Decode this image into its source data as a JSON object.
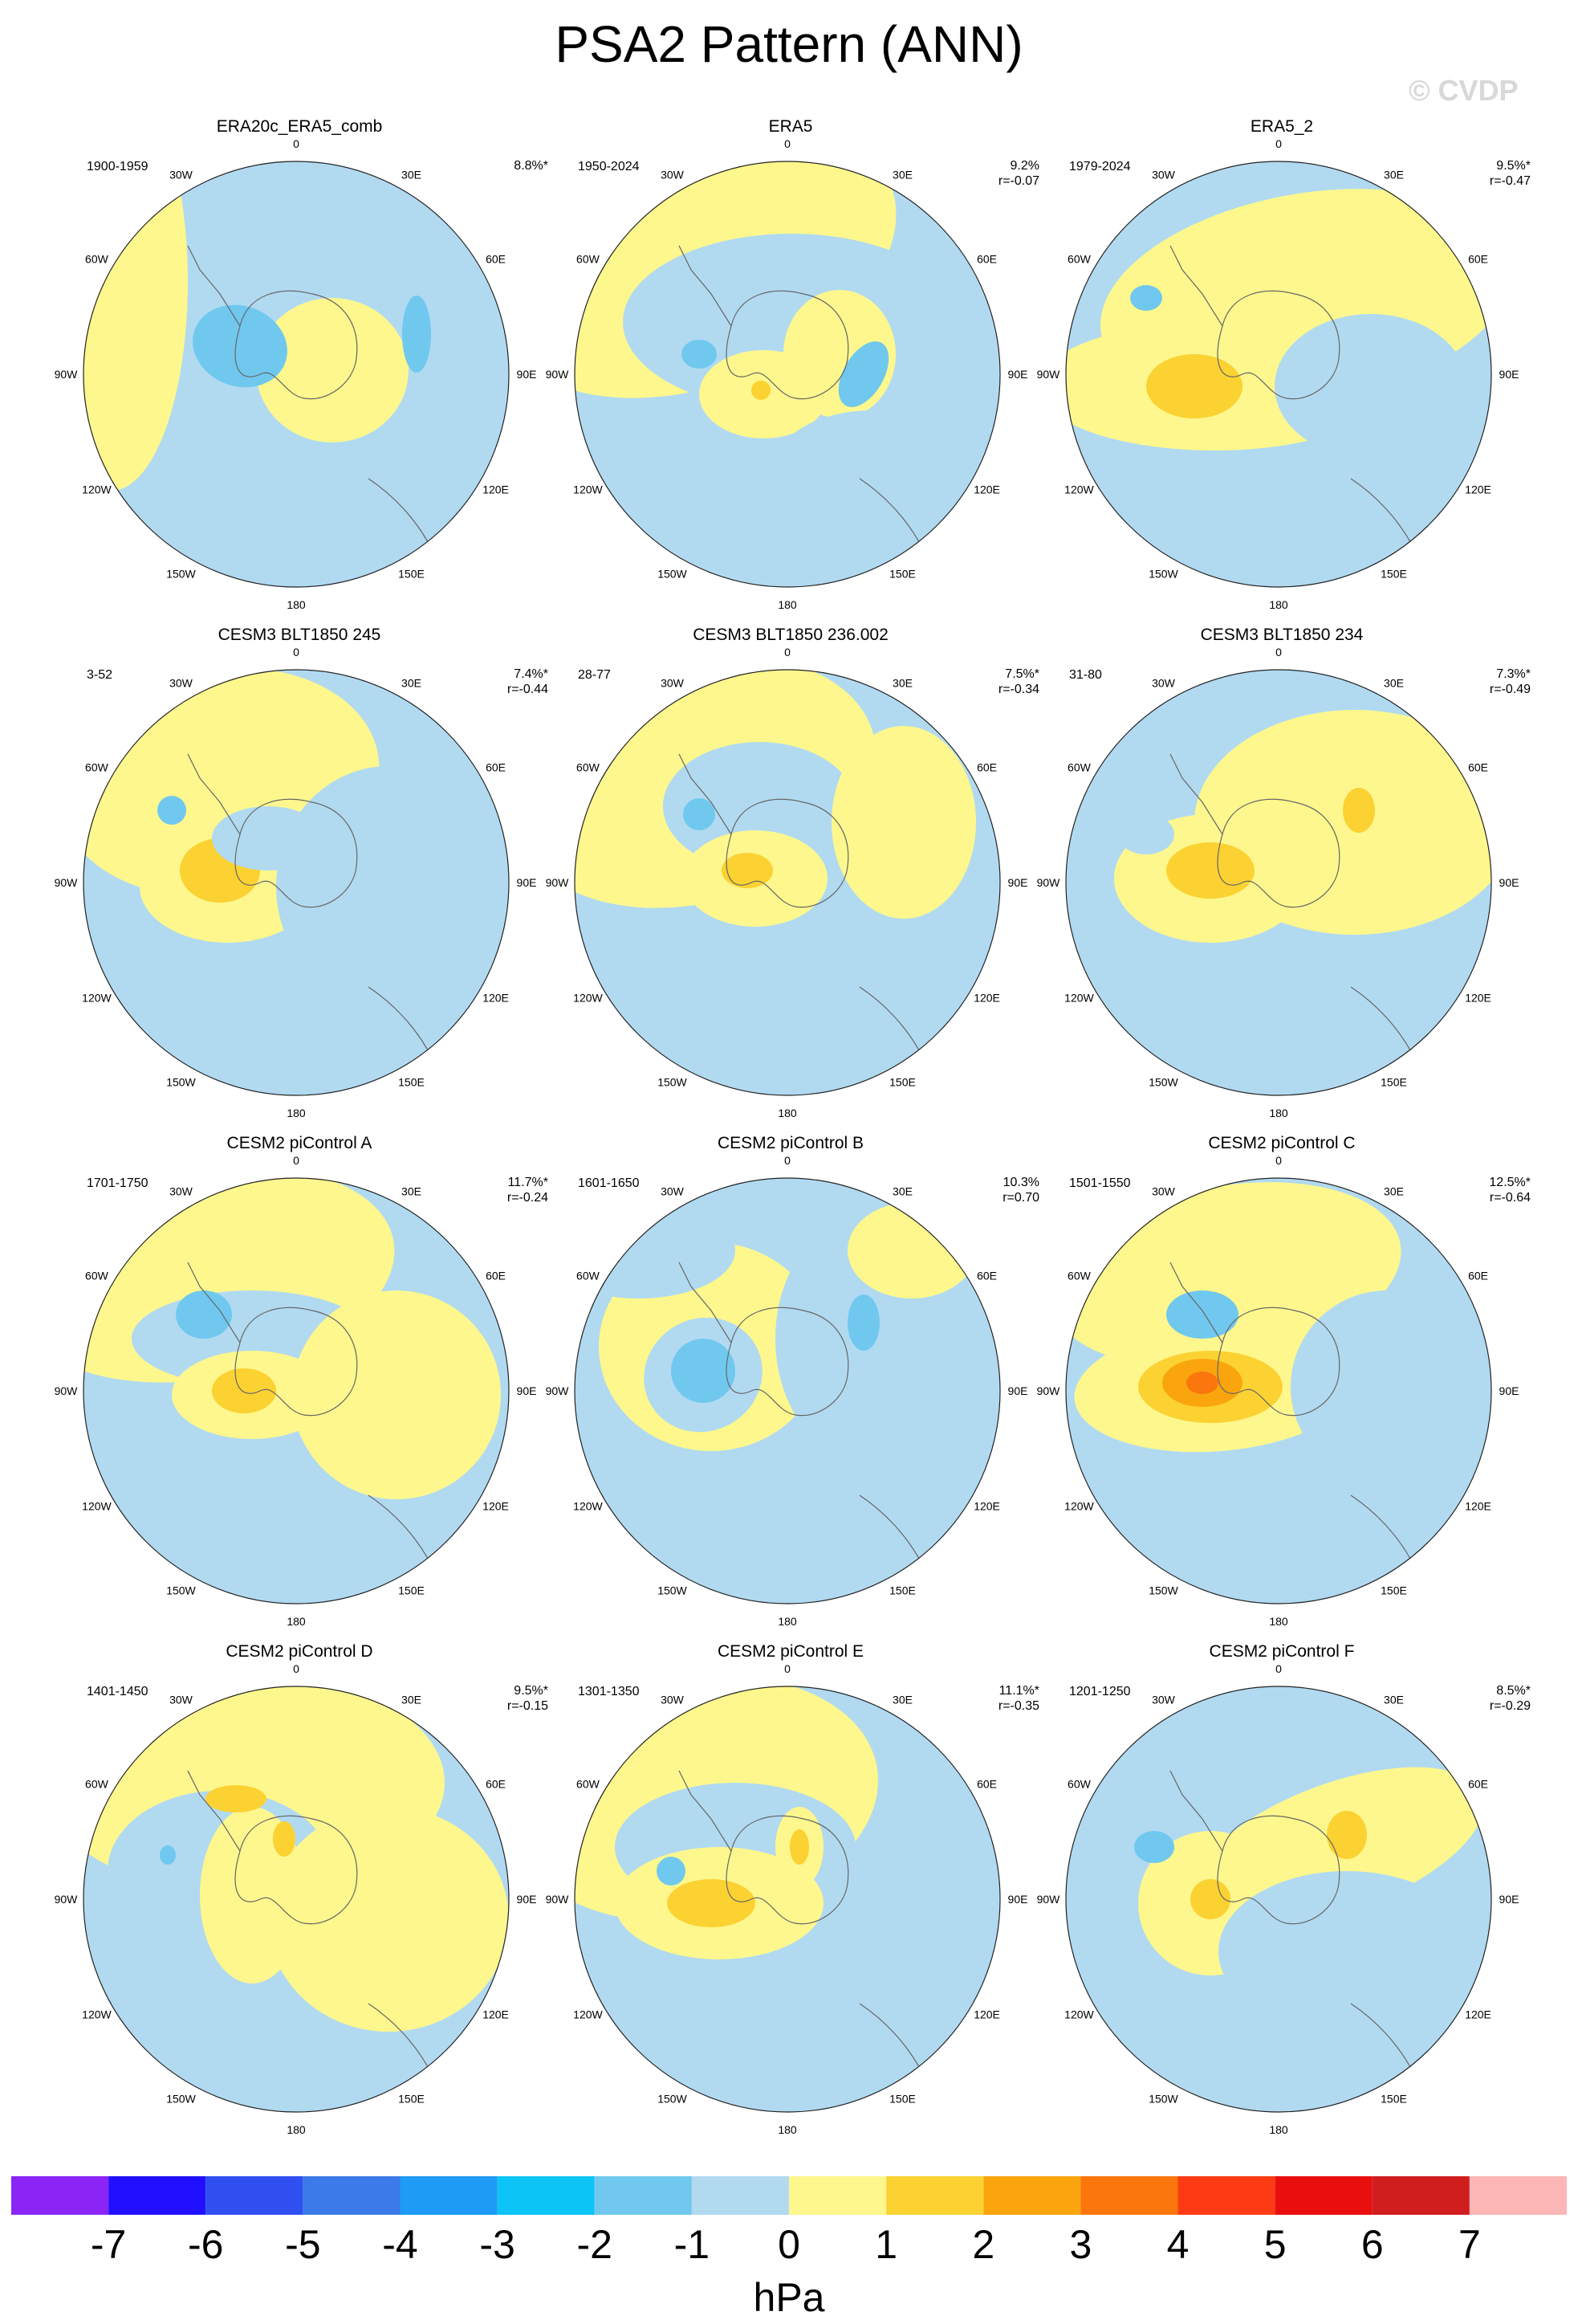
{
  "title": "PSA2 Pattern (ANN)",
  "watermark": "© CVDP",
  "chart_data": {
    "type": "heatmap",
    "projection": "south-polar-stereographic",
    "variable": "PSA2 pattern",
    "season": "ANN",
    "units": "hPa",
    "colorbar": {
      "levels": [
        -7,
        -6,
        -5,
        -4,
        -3,
        -2,
        -1,
        0,
        1,
        2,
        3,
        4,
        5,
        6,
        7
      ],
      "tick_labels": [
        "-7",
        "-6",
        "-5",
        "-4",
        "-3",
        "-2",
        "-1",
        "0",
        "1",
        "2",
        "3",
        "4",
        "5",
        "6",
        "7"
      ],
      "colors": [
        "#8b25f5",
        "#2010ff",
        "#2f4ff0",
        "#3b7ae8",
        "#1e9bf5",
        "#0cc4f5",
        "#70c8ef",
        "#b1daf1",
        "#fdf78d",
        "#fbd232",
        "#faa50d",
        "#fb760d",
        "#fc3b15",
        "#e90f0f",
        "#d01e1e",
        "#fdb6b6"
      ],
      "units_label": "hPa"
    },
    "lon_labels": [
      "0",
      "30E",
      "60E",
      "90E",
      "120E",
      "150E",
      "180",
      "150W",
      "120W",
      "90W",
      "60W",
      "30W"
    ],
    "panels": [
      {
        "title": "ERA20c_ERA5_comb",
        "period": "1900-1959",
        "pct_variance": "8.8%*",
        "r": ""
      },
      {
        "title": "ERA5",
        "period": "1950-2024",
        "pct_variance": "9.2%",
        "r": "r=-0.07"
      },
      {
        "title": "ERA5_2",
        "period": "1979-2024",
        "pct_variance": "9.5%*",
        "r": "r=-0.47"
      },
      {
        "title": "CESM3 BLT1850 245",
        "period": "3-52",
        "pct_variance": "7.4%*",
        "r": "r=-0.44"
      },
      {
        "title": "CESM3 BLT1850 236.002",
        "period": "28-77",
        "pct_variance": "7.5%*",
        "r": "r=-0.34"
      },
      {
        "title": "CESM3 BLT1850 234",
        "period": "31-80",
        "pct_variance": "7.3%*",
        "r": "r=-0.49"
      },
      {
        "title": "CESM2 piControl A",
        "period": "1701-1750",
        "pct_variance": "11.7%*",
        "r": "r=-0.24"
      },
      {
        "title": "CESM2 piControl B",
        "period": "1601-1650",
        "pct_variance": "10.3%",
        "r": "r=0.70"
      },
      {
        "title": "CESM2 piControl C",
        "period": "1501-1550",
        "pct_variance": "12.5%*",
        "r": "r=-0.64"
      },
      {
        "title": "CESM2 piControl D",
        "period": "1401-1450",
        "pct_variance": "9.5%*",
        "r": "r=-0.15"
      },
      {
        "title": "CESM2 piControl E",
        "period": "1301-1350",
        "pct_variance": "11.1%*",
        "r": "r=-0.35"
      },
      {
        "title": "CESM2 piControl F",
        "period": "1201-1250",
        "pct_variance": "8.5%*",
        "r": "r=-0.29"
      }
    ]
  }
}
